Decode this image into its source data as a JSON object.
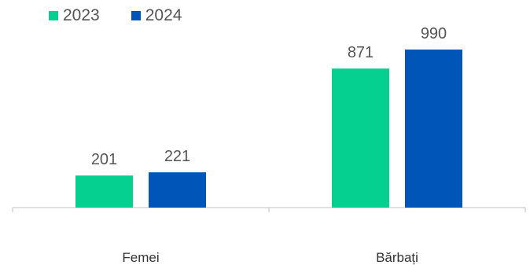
{
  "chart_data": {
    "type": "bar",
    "categories": [
      "Femei",
      "Bărbați"
    ],
    "series": [
      {
        "name": "2023",
        "values": [
          201,
          871
        ],
        "color": "#05d08f"
      },
      {
        "name": "2024",
        "values": [
          221,
          990
        ],
        "color": "#0055b8"
      }
    ],
    "title": "",
    "xlabel": "",
    "ylabel": "",
    "ylim": [
      0,
      1000
    ],
    "grid": false,
    "legend": "top-left"
  }
}
